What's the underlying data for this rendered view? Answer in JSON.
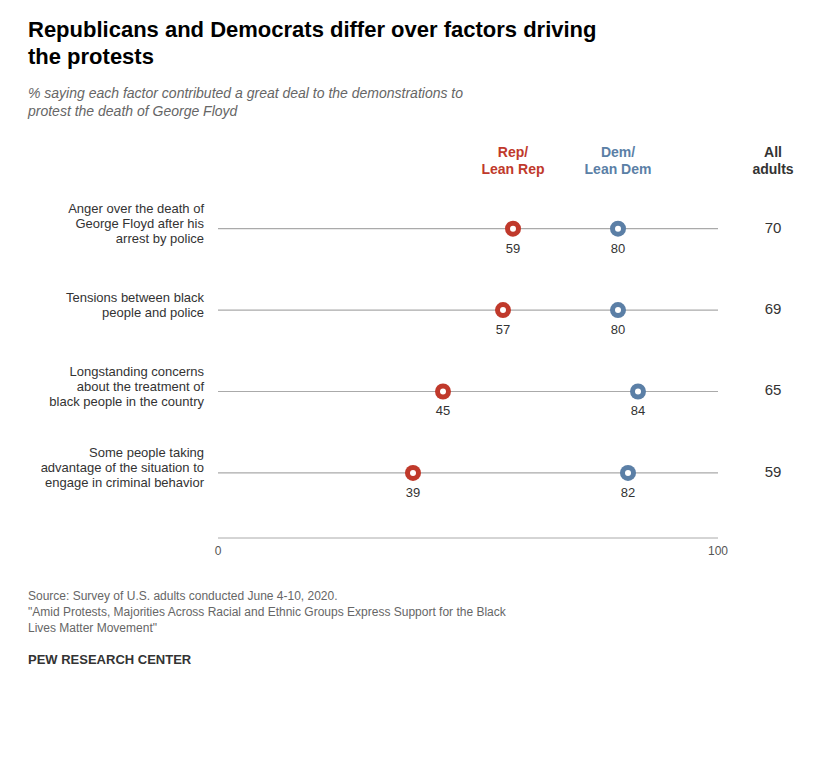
{
  "chart_data": {
    "type": "dot",
    "title": "Republicans and Democrats differ over factors driving\nthe protests",
    "subtitle": "% saying each factor contributed a great deal to the demonstrations to\nprotest the death of George Floyd",
    "categories": [
      "Anger over the death of\nGeorge Floyd after his\narrest by police",
      "Tensions between black\npeople and police",
      "Longstanding concerns\nabout the treatment of\nblack people in the country",
      "Some people taking\nadvantage of the situation to\nengage in criminal behavior"
    ],
    "series": [
      {
        "name": "Rep/\nLean Rep",
        "color": "#c0392b",
        "values": [
          59,
          57,
          45,
          39
        ]
      },
      {
        "name": "Dem/\nLean Dem",
        "color": "#5b7fa6",
        "values": [
          80,
          80,
          84,
          82
        ]
      }
    ],
    "all_adults": {
      "label": "All\nadults",
      "values": [
        70,
        69,
        65,
        59
      ]
    },
    "xlim": [
      0,
      100
    ],
    "xticks": [
      0,
      100
    ],
    "grid": false,
    "data_labels": true,
    "source": "Source: Survey of U.S. adults conducted June 4-10, 2020.\n\"Amid Protests, Majorities Across Racial and Ethnic Groups Express Support for the Black\nLives Matter Movement\"",
    "footer": "PEW RESEARCH CENTER"
  }
}
